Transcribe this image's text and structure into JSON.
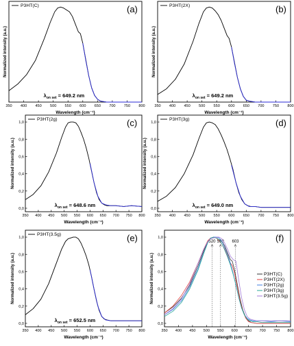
{
  "chart_data": [
    {
      "type": "line",
      "panel": "(a)",
      "legend": [
        "P3HT(C)"
      ],
      "xlabel": "Wavelength (cm⁻¹)",
      "ylabel": "Normalized intensity (a.u.)",
      "xlim": [
        350,
        800
      ],
      "xticks": [
        350,
        400,
        450,
        500,
        550,
        600,
        650,
        700,
        750,
        800
      ],
      "yticks": [],
      "onset_label": {
        "lambda": "λ",
        "sub": "on set",
        "value": " = 649.2 nm"
      },
      "series": [
        {
          "color": "#000000",
          "x": [
            350,
            380,
            410,
            440,
            470,
            490,
            505,
            515,
            525,
            535,
            545,
            555,
            565,
            575,
            585,
            592,
            600,
            610,
            620,
            630,
            640,
            650,
            660,
            680,
            700,
            730,
            760,
            800
          ],
          "y": [
            0.12,
            0.19,
            0.29,
            0.44,
            0.67,
            0.84,
            0.95,
            0.99,
            1.0,
            0.99,
            0.97,
            0.95,
            0.9,
            0.82,
            0.74,
            0.72,
            0.62,
            0.45,
            0.28,
            0.15,
            0.07,
            0.03,
            0.01,
            0.0,
            0.0,
            0.0,
            0.0,
            0.0
          ]
        },
        {
          "color": "#2a2ad6",
          "x": [
            600,
            610,
            620,
            630,
            640,
            650,
            660,
            680,
            700,
            730,
            760,
            800
          ],
          "y": [
            0.62,
            0.44,
            0.28,
            0.15,
            0.07,
            0.03,
            0.01,
            0.0,
            0.0,
            0.0,
            0.0,
            0.0
          ]
        }
      ]
    },
    {
      "type": "line",
      "panel": "(b)",
      "legend": [
        "P3HT(2X)"
      ],
      "xlabel": "Wavelength (cm⁻¹)",
      "ylabel": "Normalized intensity (a.u.)",
      "xlim": [
        350,
        800
      ],
      "xticks": [
        350,
        400,
        450,
        500,
        550,
        600,
        650,
        700,
        750,
        800
      ],
      "yticks": [],
      "onset_label": {
        "lambda": "λ",
        "sub": "on set",
        "value": " = 649.2 nm"
      },
      "series": [
        {
          "color": "#000000",
          "x": [
            350,
            380,
            410,
            440,
            470,
            490,
            505,
            515,
            525,
            535,
            545,
            555,
            565,
            575,
            585,
            592,
            600,
            610,
            620,
            630,
            640,
            650,
            660,
            680,
            700,
            730,
            760,
            800
          ],
          "y": [
            0.08,
            0.14,
            0.24,
            0.4,
            0.64,
            0.83,
            0.95,
            0.99,
            1.0,
            0.99,
            0.96,
            0.92,
            0.86,
            0.78,
            0.7,
            0.67,
            0.58,
            0.42,
            0.26,
            0.14,
            0.06,
            0.02,
            0.01,
            0.0,
            0.0,
            0.0,
            0.0,
            0.0
          ]
        },
        {
          "color": "#2a2ad6",
          "x": [
            600,
            610,
            620,
            630,
            640,
            650,
            660,
            680,
            700,
            730,
            760,
            800
          ],
          "y": [
            0.58,
            0.41,
            0.26,
            0.14,
            0.06,
            0.02,
            0.01,
            0.0,
            0.0,
            0.0,
            0.0,
            0.0
          ]
        }
      ]
    },
    {
      "type": "line",
      "panel": "(c)",
      "legend": [
        "P3HT(2g)"
      ],
      "xlabel": "Wavelength (cm⁻¹)",
      "ylabel": "Normalized intensity (a.u.)",
      "xlim": [
        350,
        800
      ],
      "ylim": [
        0,
        1.0
      ],
      "xticks": [
        350,
        400,
        450,
        500,
        550,
        600,
        650,
        700,
        750,
        800
      ],
      "yticks": [
        "0,0",
        "0,2",
        "0,4",
        "0,6",
        "0,8",
        "1,0"
      ],
      "onset_label": {
        "lambda": "λ",
        "sub": "on set",
        "value": " = 648.6 nm"
      },
      "series": [
        {
          "color": "#000000",
          "x": [
            350,
            380,
            410,
            440,
            470,
            490,
            505,
            515,
            525,
            535,
            545,
            555,
            565,
            575,
            585,
            595,
            605,
            615,
            625,
            635,
            645,
            655,
            665,
            680,
            700,
            730,
            760,
            800
          ],
          "y": [
            0.1,
            0.16,
            0.26,
            0.42,
            0.64,
            0.82,
            0.94,
            0.99,
            1.0,
            1.0,
            0.99,
            0.95,
            0.88,
            0.8,
            0.7,
            0.58,
            0.44,
            0.3,
            0.18,
            0.1,
            0.06,
            0.04,
            0.03,
            0.03,
            0.03,
            0.02,
            0.03,
            0.02
          ]
        },
        {
          "color": "#2a2ad6",
          "x": [
            600,
            615,
            630,
            645,
            660,
            680,
            700,
            730,
            760,
            800
          ],
          "y": [
            0.52,
            0.3,
            0.14,
            0.06,
            0.04,
            0.03,
            0.03,
            0.02,
            0.03,
            0.02
          ]
        }
      ]
    },
    {
      "type": "line",
      "panel": "(d)",
      "legend": [
        "P3HT(3g)"
      ],
      "xlabel": "Wavelength (cm⁻¹)",
      "ylabel": "Normalized intensity (a.u.)",
      "xlim": [
        350,
        800
      ],
      "ylim": [
        0,
        1.0
      ],
      "xticks": [
        350,
        400,
        450,
        500,
        550,
        600,
        650,
        700,
        750,
        800
      ],
      "yticks": [
        "0,0",
        "0,2",
        "0,4",
        "0,6",
        "0,8",
        "1,0"
      ],
      "onset_label": {
        "lambda": "λ",
        "sub": "on set",
        "value": " = 649.0 nm"
      },
      "series": [
        {
          "color": "#000000",
          "x": [
            350,
            380,
            410,
            440,
            470,
            490,
            505,
            515,
            525,
            535,
            545,
            555,
            565,
            575,
            585,
            595,
            605,
            615,
            625,
            635,
            645,
            655,
            665,
            680,
            700,
            730,
            760,
            800
          ],
          "y": [
            0.08,
            0.14,
            0.24,
            0.4,
            0.62,
            0.81,
            0.94,
            0.99,
            1.0,
            0.99,
            0.97,
            0.92,
            0.85,
            0.77,
            0.68,
            0.57,
            0.45,
            0.3,
            0.18,
            0.1,
            0.05,
            0.03,
            0.02,
            0.02,
            0.01,
            0.01,
            0.01,
            0.01
          ]
        },
        {
          "color": "#2a2ad6",
          "x": [
            600,
            615,
            630,
            645,
            660,
            680,
            700,
            730,
            760,
            800
          ],
          "y": [
            0.5,
            0.3,
            0.14,
            0.05,
            0.02,
            0.02,
            0.01,
            0.01,
            0.01,
            0.01
          ]
        }
      ]
    },
    {
      "type": "line",
      "panel": "(e)",
      "legend": [
        "P3HT(3.5g)"
      ],
      "xlabel": "Wavelength (cm⁻¹)",
      "ylabel": "Normalized intensity (a.u.)",
      "xlim": [
        350,
        800
      ],
      "ylim": [
        0,
        1.0
      ],
      "xticks": [
        350,
        400,
        450,
        500,
        550,
        600,
        650,
        700,
        750,
        800
      ],
      "yticks": [
        "0,0",
        "0,2",
        "0,4",
        "0,6",
        "0,8",
        "1,0"
      ],
      "onset_label": {
        "lambda": "λ",
        "sub": "on set",
        "value": " = 652.5 nm"
      },
      "series": [
        {
          "color": "#000000",
          "x": [
            350,
            380,
            410,
            440,
            470,
            490,
            505,
            515,
            525,
            535,
            545,
            555,
            565,
            575,
            585,
            595,
            605,
            615,
            625,
            635,
            645,
            655,
            665,
            680,
            700,
            730,
            760,
            800
          ],
          "y": [
            0.1,
            0.17,
            0.28,
            0.46,
            0.7,
            0.86,
            0.95,
            0.98,
            0.99,
            1.0,
            1.0,
            0.98,
            0.93,
            0.86,
            0.78,
            0.68,
            0.55,
            0.4,
            0.26,
            0.15,
            0.08,
            0.05,
            0.04,
            0.03,
            0.03,
            0.03,
            0.03,
            0.03
          ]
        },
        {
          "color": "#2a2ad6",
          "x": [
            600,
            615,
            630,
            645,
            660,
            680,
            700,
            730,
            760,
            800
          ],
          "y": [
            0.62,
            0.4,
            0.2,
            0.08,
            0.04,
            0.03,
            0.03,
            0.03,
            0.03,
            0.03
          ]
        }
      ]
    },
    {
      "type": "line",
      "panel": "(f)",
      "legend": [
        "P3HT(C)",
        "P3HT(2X)",
        "P3HT(2g)",
        "P3HT(3g)",
        "P3HT(3.5g)"
      ],
      "xlabel": "Wavelength (cm⁻¹)",
      "ylabel": "Normalized intensity (a.u.)",
      "xlim": [
        350,
        800
      ],
      "ylim": [
        0,
        1.0
      ],
      "xticks": [
        350,
        400,
        450,
        500,
        550,
        600,
        650,
        700,
        750,
        800
      ],
      "yticks": [
        "0,0",
        "0,2",
        "0,4",
        "0,6",
        "0,8",
        "1,0"
      ],
      "peak_markers": [
        520,
        550,
        603
      ],
      "series": [
        {
          "name": "P3HT(C)",
          "color": "#333333",
          "x": [
            350,
            380,
            410,
            440,
            470,
            490,
            505,
            515,
            525,
            535,
            545,
            555,
            565,
            575,
            585,
            592,
            600,
            610,
            620,
            630,
            640,
            650,
            660,
            680,
            700,
            730,
            760,
            800
          ],
          "y": [
            0.12,
            0.19,
            0.29,
            0.44,
            0.67,
            0.84,
            0.95,
            0.99,
            1.0,
            0.99,
            0.97,
            0.95,
            0.9,
            0.82,
            0.74,
            0.72,
            0.62,
            0.45,
            0.28,
            0.15,
            0.07,
            0.03,
            0.01,
            0.0,
            0.0,
            0.0,
            0.0,
            0.0
          ]
        },
        {
          "name": "P3HT(2X)",
          "color": "#e03c3c",
          "x": [
            350,
            380,
            410,
            440,
            470,
            490,
            505,
            515,
            525,
            535,
            545,
            555,
            565,
            575,
            585,
            592,
            600,
            610,
            620,
            630,
            640,
            650,
            660,
            680,
            700,
            730,
            760,
            800
          ],
          "y": [
            0.12,
            0.2,
            0.32,
            0.48,
            0.7,
            0.86,
            0.96,
            0.99,
            1.0,
            0.99,
            0.96,
            0.92,
            0.86,
            0.78,
            0.7,
            0.67,
            0.58,
            0.42,
            0.26,
            0.14,
            0.06,
            0.02,
            0.01,
            0.0,
            0.0,
            0.0,
            0.0,
            0.0
          ]
        },
        {
          "name": "P3HT(2g)",
          "color": "#3c7de0",
          "x": [
            350,
            380,
            410,
            440,
            470,
            490,
            505,
            515,
            525,
            535,
            545,
            555,
            565,
            575,
            585,
            595,
            605,
            615,
            625,
            635,
            645,
            655,
            665,
            680,
            700,
            730,
            760,
            800
          ],
          "y": [
            0.1,
            0.16,
            0.26,
            0.42,
            0.64,
            0.82,
            0.94,
            0.99,
            1.0,
            1.0,
            0.99,
            0.95,
            0.88,
            0.8,
            0.7,
            0.58,
            0.44,
            0.3,
            0.18,
            0.1,
            0.06,
            0.04,
            0.03,
            0.03,
            0.03,
            0.02,
            0.03,
            0.02
          ]
        },
        {
          "name": "P3HT(3g)",
          "color": "#2aa89a",
          "x": [
            350,
            380,
            410,
            440,
            470,
            490,
            505,
            515,
            525,
            535,
            545,
            555,
            565,
            575,
            585,
            595,
            605,
            615,
            625,
            635,
            645,
            655,
            665,
            680,
            700,
            730,
            760,
            800
          ],
          "y": [
            0.08,
            0.14,
            0.24,
            0.4,
            0.62,
            0.81,
            0.94,
            0.99,
            1.0,
            0.99,
            0.97,
            0.92,
            0.85,
            0.77,
            0.68,
            0.57,
            0.45,
            0.3,
            0.18,
            0.1,
            0.05,
            0.03,
            0.02,
            0.02,
            0.01,
            0.01,
            0.01,
            0.01
          ]
        },
        {
          "name": "P3HT(3.5g)",
          "color": "#a27ad8",
          "x": [
            350,
            380,
            410,
            440,
            470,
            490,
            505,
            515,
            525,
            535,
            545,
            555,
            565,
            575,
            585,
            595,
            605,
            615,
            625,
            635,
            645,
            655,
            665,
            680,
            700,
            730,
            760,
            800
          ],
          "y": [
            0.1,
            0.17,
            0.28,
            0.46,
            0.7,
            0.86,
            0.95,
            0.98,
            0.99,
            1.0,
            1.0,
            0.98,
            0.93,
            0.86,
            0.78,
            0.74,
            0.72,
            0.5,
            0.3,
            0.16,
            0.08,
            0.05,
            0.04,
            0.03,
            0.03,
            0.03,
            0.03,
            0.03
          ]
        }
      ]
    }
  ]
}
